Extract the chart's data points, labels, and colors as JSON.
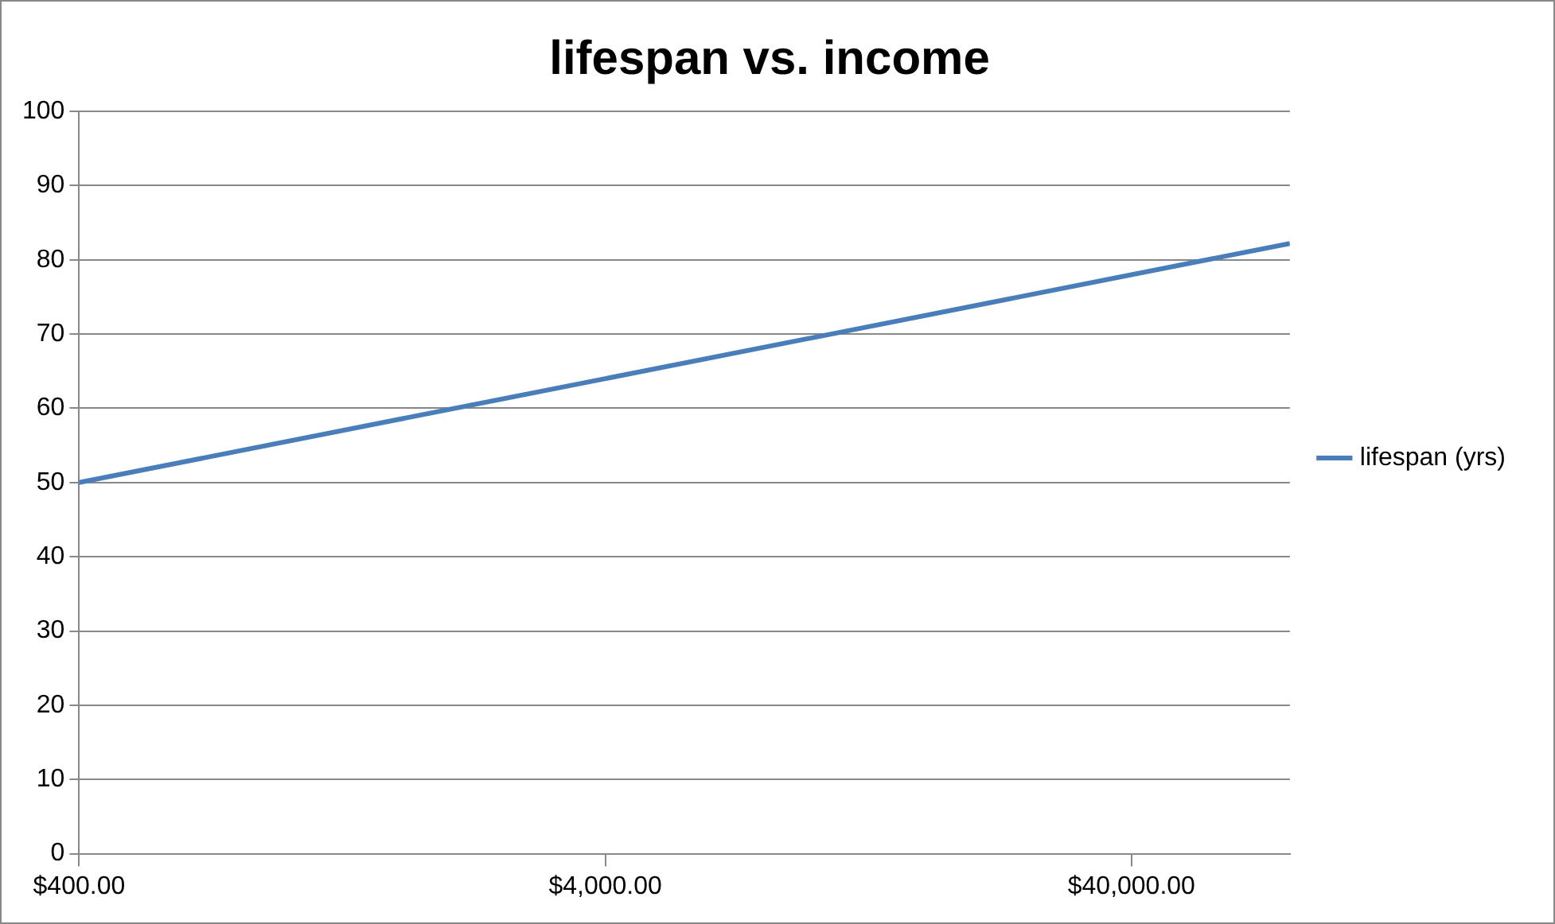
{
  "chart_data": {
    "type": "line",
    "title": "lifespan vs. income",
    "x": [
      400,
      80000
    ],
    "series": [
      {
        "name": "lifespan (yrs)",
        "color": "#4a7ebb",
        "values": [
          50,
          82.2
        ]
      }
    ],
    "log": "x",
    "xlim": [
      400,
      80000
    ],
    "xticks": [
      {
        "value": 400,
        "label": "$400.00"
      },
      {
        "value": 4000,
        "label": "$4,000.00"
      },
      {
        "value": 40000,
        "label": "$40,000.00"
      }
    ],
    "ylim": [
      0,
      100
    ],
    "yticks": [
      0,
      10,
      20,
      30,
      40,
      50,
      60,
      70,
      80,
      90,
      100
    ],
    "grid": "y",
    "legend": "right",
    "marker": "none",
    "line_style": "solid"
  }
}
